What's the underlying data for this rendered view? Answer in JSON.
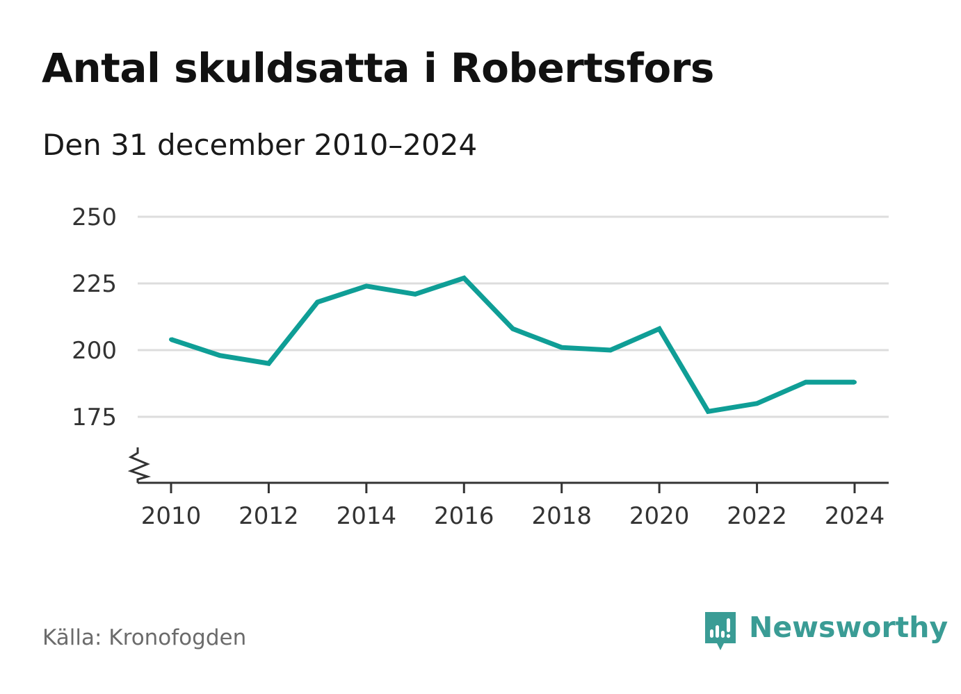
{
  "header": {
    "title": "Antal skuldsatta i Robertsfors",
    "subtitle": "Den 31 december 2010–2024"
  },
  "footer": {
    "source": "Källa: Kronofogden",
    "brand_name": "Newsworthy",
    "brand_icon": "bar-chart-speech-bubble-icon"
  },
  "colors": {
    "line": "#0f9e96",
    "grid": "#dddddd",
    "axis": "#333333",
    "brand": "#3a9c95"
  },
  "chart_data": {
    "type": "line",
    "x": [
      2010,
      2011,
      2012,
      2013,
      2014,
      2015,
      2016,
      2017,
      2018,
      2019,
      2020,
      2021,
      2022,
      2023,
      2024
    ],
    "series": [
      {
        "values": [
          204,
          198,
          195,
          218,
          224,
          221,
          227,
          208,
          201,
          200,
          208,
          177,
          180,
          188,
          188
        ]
      }
    ],
    "x_ticks": [
      "2010",
      "2012",
      "2014",
      "2016",
      "2018",
      "2020",
      "2022",
      "2024"
    ],
    "y_ticks": [
      "175",
      "200",
      "225",
      "250"
    ],
    "ylim": [
      150,
      250
    ],
    "y_axis_break": true,
    "grid": "horizontal",
    "legend": "none",
    "xlabel": "",
    "ylabel": ""
  }
}
